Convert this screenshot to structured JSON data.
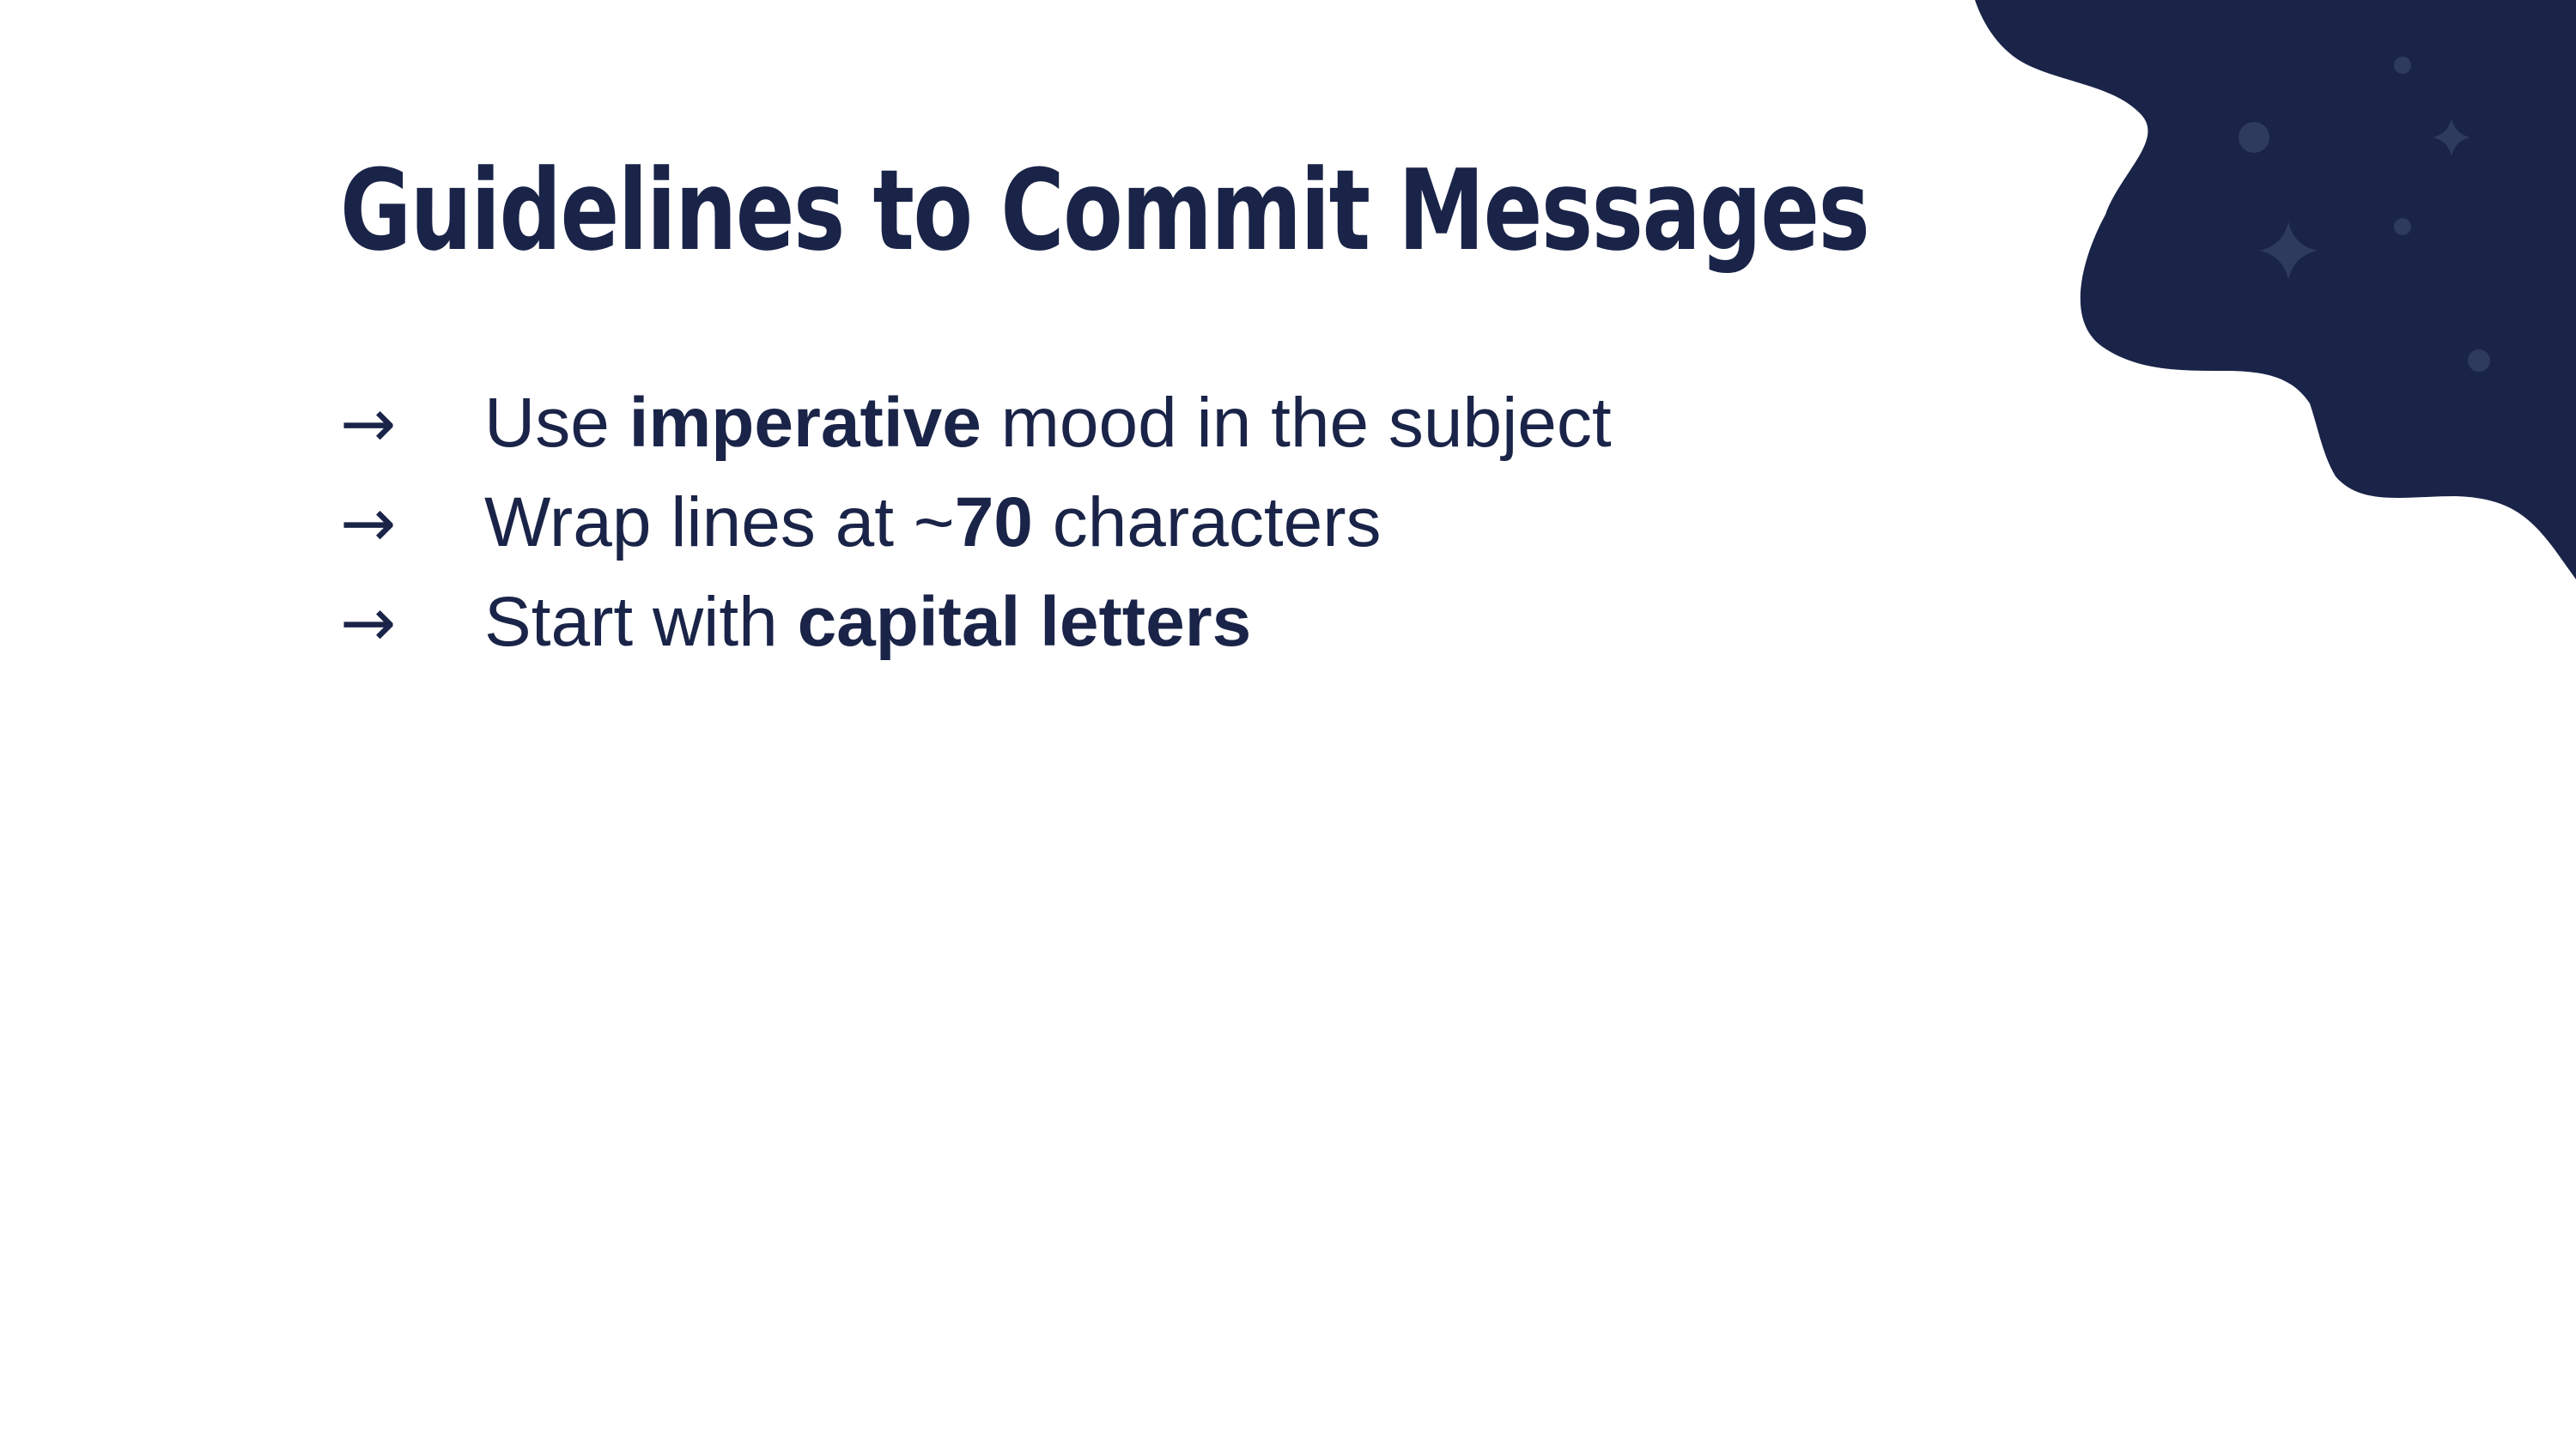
{
  "colors": {
    "primary": "#1a2448",
    "accent_soft": "#2e3a5e",
    "background": "#ffffff"
  },
  "slide": {
    "title": "Guidelines to Commit Messages",
    "bullets": [
      {
        "icon": "arrow-right-icon",
        "glyph": "→",
        "pre": "Use ",
        "bold": "imperative",
        "post": " mood in the subject"
      },
      {
        "icon": "arrow-right-icon",
        "glyph": "→",
        "pre": "Wrap lines at ~",
        "bold": "70",
        "post": " characters"
      },
      {
        "icon": "arrow-right-icon",
        "glyph": "→",
        "pre": "Start with ",
        "bold": "capital letters",
        "post": ""
      }
    ]
  },
  "decoration": {
    "icons": [
      "blob-shape",
      "sparkle-icon",
      "dot-icon"
    ]
  }
}
